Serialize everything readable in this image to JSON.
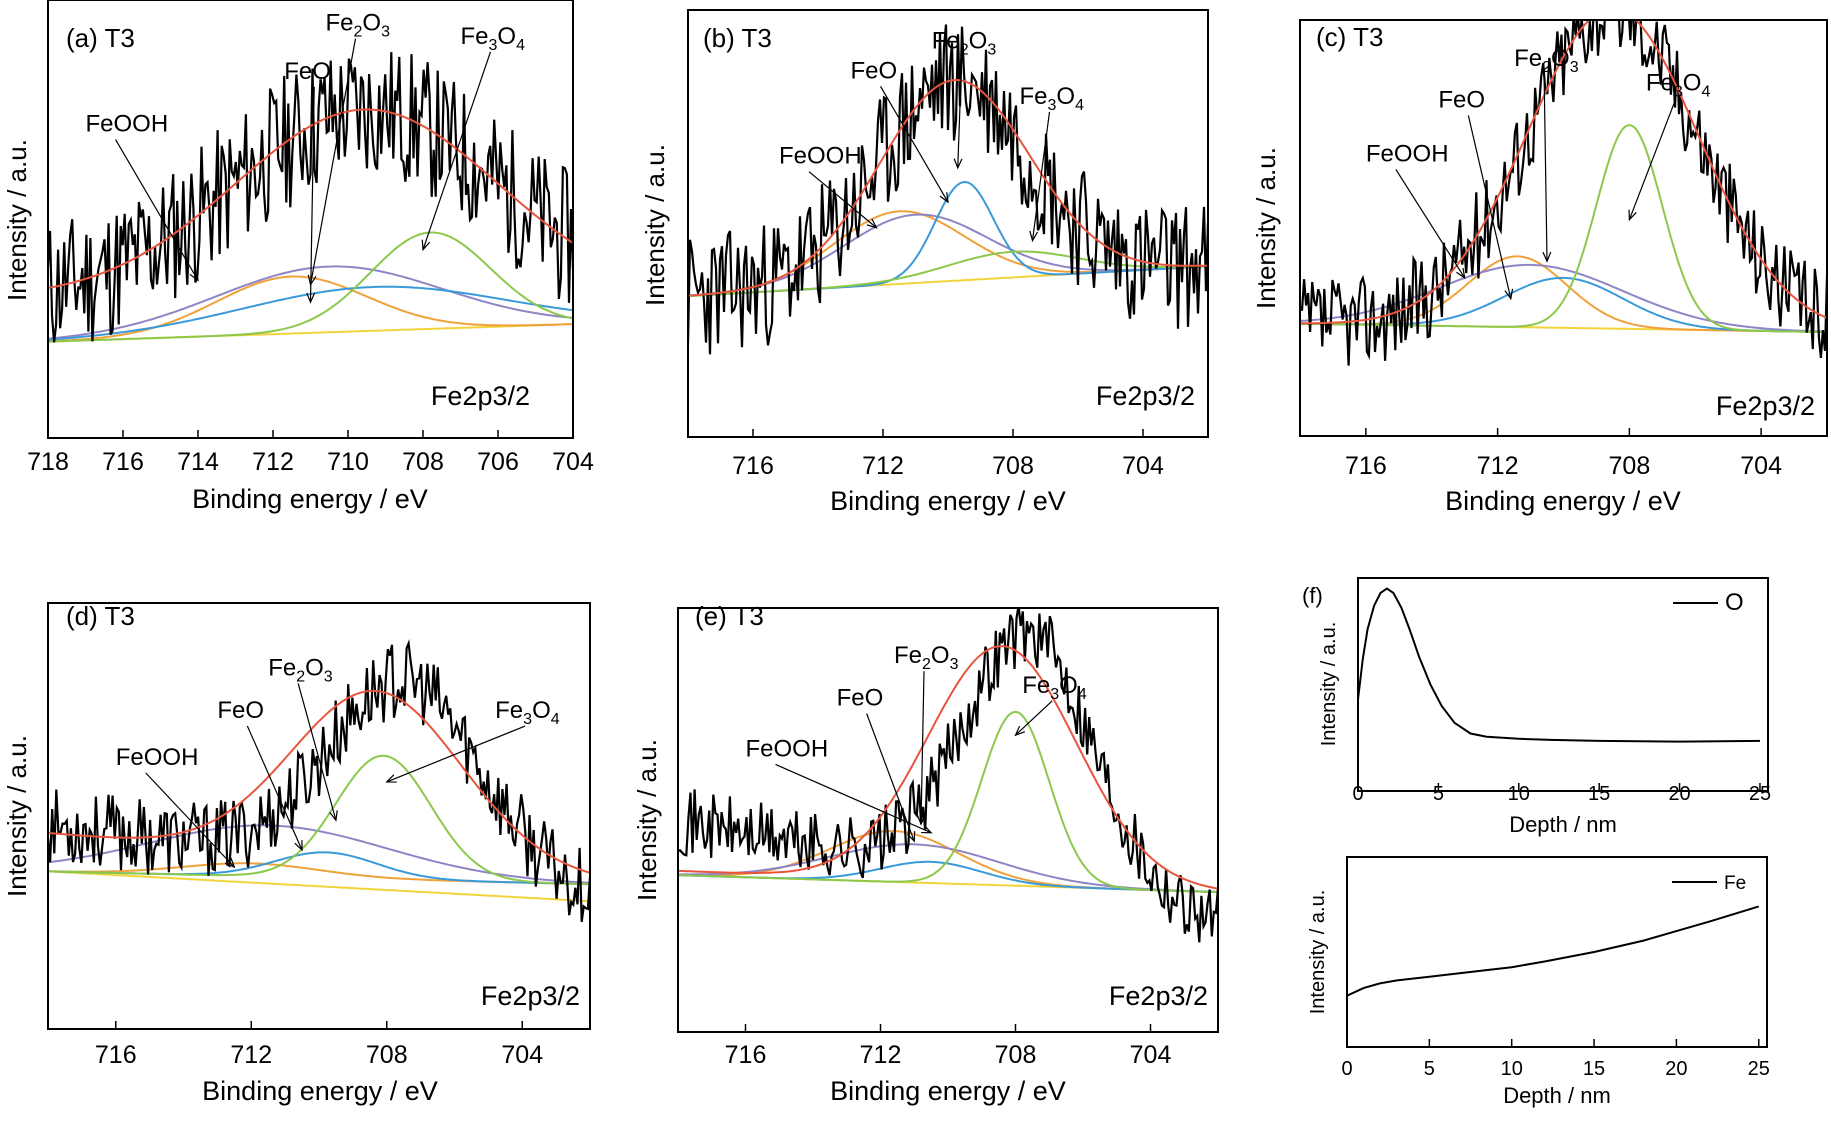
{
  "colors": {
    "raw": "#000000",
    "envelope": "#e8553d",
    "FeOOH": "#f0a13a",
    "FeO": "#3a9ad9",
    "Fe2O3": "#8f85c6",
    "Fe3O4": "#8cc84b",
    "background": "#f2d33a"
  },
  "chart_data": [
    {
      "type": "line",
      "panel": "(a)",
      "sample": "T3",
      "xlabel": "Binding energy / eV",
      "ylabel": "Intensity / a.u.",
      "region_label": "Fe2p3/2",
      "xlim": [
        718,
        704
      ],
      "ylim": [
        0,
        1
      ],
      "xticks": [
        718,
        716,
        714,
        712,
        710,
        708,
        706,
        704
      ],
      "x_reversed": true,
      "grid": false,
      "series": [
        {
          "name": "FeOOH",
          "kind": "peak",
          "center": 711.5,
          "amp": 0.13,
          "width": 2.0,
          "base": [
            0.22,
            0.26
          ]
        },
        {
          "name": "FeO",
          "kind": "peak",
          "center": 709.3,
          "amp": 0.1,
          "width": 3.5,
          "base": [
            0.22,
            0.26
          ]
        },
        {
          "name": "Fe2O3",
          "kind": "peak",
          "center": 710.5,
          "amp": 0.15,
          "width": 3.0,
          "base": [
            0.22,
            0.26
          ]
        },
        {
          "name": "Fe3O4",
          "kind": "peak",
          "center": 707.8,
          "amp": 0.22,
          "width": 1.6,
          "base": [
            0.22,
            0.26
          ]
        },
        {
          "name": "background",
          "kind": "line",
          "base": [
            0.22,
            0.26
          ]
        },
        {
          "name": "envelope",
          "kind": "peak",
          "center": 709.5,
          "amp": 0.43,
          "width": 3.5,
          "base": [
            0.32,
            0.32
          ]
        },
        {
          "name": "raw",
          "kind": "raw",
          "center": 709.5,
          "amp": 0.43,
          "width": 3.5,
          "base": [
            0.32,
            0.32
          ],
          "noise": 0.16,
          "seed": 11
        }
      ],
      "annotations": [
        {
          "text": "FeOOH",
          "tx": 717,
          "ty": 0.7,
          "ax": 714.0,
          "ay": 0.36
        },
        {
          "text": "FeO",
          "tx": 711.7,
          "ty": 0.82,
          "ax": 711.0,
          "ay": 0.31
        },
        {
          "text": "Fe",
          "sub": "2",
          "mid": "O",
          "sub2": "3",
          "tx": 710.6,
          "ty": 0.93,
          "ax": 711.0,
          "ay": 0.35
        },
        {
          "text": "Fe",
          "sub": "3",
          "mid": "O",
          "sub2": "4",
          "tx": 707.0,
          "ty": 0.9,
          "ax": 708.0,
          "ay": 0.43
        }
      ]
    },
    {
      "type": "line",
      "panel": "(b)",
      "sample": "T3",
      "xlabel": "Binding energy / eV",
      "ylabel": "Intensity / a.u.",
      "region_label": "Fe2p3/2",
      "xlim": [
        718,
        702
      ],
      "ylim": [
        0,
        1
      ],
      "xticks": [
        716,
        712,
        708,
        704
      ],
      "x_reversed": true,
      "grid": false,
      "series": [
        {
          "name": "FeOOH",
          "kind": "peak",
          "center": 711.5,
          "amp": 0.17,
          "width": 2.0,
          "base": [
            0.33,
            0.4
          ]
        },
        {
          "name": "FeO",
          "kind": "peak",
          "center": 709.5,
          "amp": 0.23,
          "width": 0.9,
          "base": [
            0.33,
            0.4
          ]
        },
        {
          "name": "Fe2O3",
          "kind": "peak",
          "center": 711.0,
          "amp": 0.16,
          "width": 2.2,
          "base": [
            0.33,
            0.4
          ]
        },
        {
          "name": "Fe3O4",
          "kind": "peak",
          "center": 708.0,
          "amp": 0.06,
          "width": 2.0,
          "base": [
            0.33,
            0.4
          ]
        },
        {
          "name": "background",
          "kind": "line",
          "base": [
            0.33,
            0.4
          ]
        },
        {
          "name": "envelope",
          "kind": "peak",
          "center": 709.8,
          "amp": 0.47,
          "width": 2.3,
          "base": [
            0.33,
            0.4
          ]
        },
        {
          "name": "raw",
          "kind": "raw",
          "center": 709.8,
          "amp": 0.47,
          "width": 2.3,
          "base": [
            0.33,
            0.4
          ],
          "noise": 0.15,
          "seed": 23
        }
      ],
      "annotations": [
        {
          "text": "FeOOH",
          "tx": 715.2,
          "ty": 0.64,
          "ax": 712.2,
          "ay": 0.49
        },
        {
          "text": "FeO",
          "tx": 713.0,
          "ty": 0.84,
          "ax": 710.0,
          "ay": 0.55
        },
        {
          "text": "Fe",
          "sub": "2",
          "mid": "O",
          "sub2": "3",
          "tx": 710.5,
          "ty": 0.91,
          "ax": 709.7,
          "ay": 0.63
        },
        {
          "text": "Fe",
          "sub": "3",
          "mid": "O",
          "sub2": "4",
          "tx": 707.8,
          "ty": 0.78,
          "ax": 707.4,
          "ay": 0.46
        }
      ]
    },
    {
      "type": "line",
      "panel": "(c)",
      "sample": "T3",
      "xlabel": "Binding energy / eV",
      "ylabel": "Intensity / a.u.",
      "region_label": "Fe2p3/2",
      "xlim": [
        718,
        702
      ],
      "ylim": [
        0,
        1
      ],
      "xticks": [
        716,
        712,
        708,
        704
      ],
      "x_reversed": true,
      "grid": false,
      "series": [
        {
          "name": "FeOOH",
          "kind": "peak",
          "center": 711.4,
          "amp": 0.17,
          "width": 1.5,
          "base": [
            0.27,
            0.25
          ]
        },
        {
          "name": "FeO",
          "kind": "peak",
          "center": 710.0,
          "amp": 0.12,
          "width": 1.8,
          "base": [
            0.27,
            0.25
          ]
        },
        {
          "name": "Fe2O3",
          "kind": "peak",
          "center": 711.0,
          "amp": 0.15,
          "width": 2.8,
          "base": [
            0.27,
            0.25
          ]
        },
        {
          "name": "Fe3O4",
          "kind": "peak",
          "center": 708.0,
          "amp": 0.49,
          "width": 1.0,
          "base": [
            0.27,
            0.25
          ]
        },
        {
          "name": "background",
          "kind": "line",
          "base": [
            0.27,
            0.25
          ]
        },
        {
          "name": "envelope",
          "kind": "peak",
          "center": 708.5,
          "amp": 0.77,
          "width": 2.6,
          "base": [
            0.27,
            0.25
          ]
        },
        {
          "name": "raw",
          "kind": "raw",
          "center": 708.5,
          "amp": 0.77,
          "width": 2.6,
          "base": [
            0.27,
            0.25
          ],
          "noise": 0.11,
          "seed": 37
        }
      ],
      "annotations": [
        {
          "text": "FeOOH",
          "tx": 716.0,
          "ty": 0.66,
          "ax": 713.0,
          "ay": 0.38
        },
        {
          "text": "FeO",
          "tx": 713.8,
          "ty": 0.79,
          "ax": 711.6,
          "ay": 0.33
        },
        {
          "text": "Fe",
          "sub": "2",
          "mid": "O",
          "sub2": "3",
          "tx": 711.5,
          "ty": 0.89,
          "ax": 710.5,
          "ay": 0.42
        },
        {
          "text": "Fe",
          "sub": "3",
          "mid": "O",
          "sub2": "4",
          "tx": 707.5,
          "ty": 0.83,
          "ax": 708.0,
          "ay": 0.52
        }
      ]
    },
    {
      "type": "line",
      "panel": "(d)",
      "sample": "T3",
      "xlabel": "Binding energy / eV",
      "ylabel": "Intensity / a.u.",
      "region_label": "Fe2p3/2",
      "xlim": [
        718,
        702
      ],
      "ylim": [
        0,
        1
      ],
      "xticks": [
        716,
        712,
        708,
        704
      ],
      "x_reversed": true,
      "grid": false,
      "series": [
        {
          "name": "FeOOH",
          "kind": "peak",
          "center": 712.0,
          "amp": 0.03,
          "width": 2.0,
          "base": [
            0.37,
            0.34
          ]
        },
        {
          "name": "FeO",
          "kind": "peak",
          "center": 709.8,
          "amp": 0.06,
          "width": 1.5,
          "base": [
            0.37,
            0.34
          ]
        },
        {
          "name": "Fe2O3",
          "kind": "peak",
          "center": 711.5,
          "amp": 0.12,
          "width": 3.5,
          "base": [
            0.37,
            0.34
          ]
        },
        {
          "name": "Fe3O4",
          "kind": "peak",
          "center": 708.1,
          "amp": 0.29,
          "width": 1.4,
          "base": [
            0.37,
            0.34
          ]
        },
        {
          "name": "background",
          "kind": "line",
          "base": [
            0.37,
            0.3
          ]
        },
        {
          "name": "envelope",
          "kind": "peak",
          "center": 708.3,
          "amp": 0.4,
          "width": 2.5,
          "base": [
            0.46,
            0.35
          ]
        },
        {
          "name": "raw",
          "kind": "raw",
          "center": 707.5,
          "amp": 0.45,
          "width": 2.2,
          "base": [
            0.48,
            0.31
          ],
          "noise": 0.09,
          "seed": 53
        }
      ],
      "annotations": [
        {
          "text": "FeOOH",
          "tx": 716.0,
          "ty": 0.62,
          "ax": 712.5,
          "ay": 0.38
        },
        {
          "text": "FeO",
          "tx": 713.0,
          "ty": 0.73,
          "ax": 710.5,
          "ay": 0.42
        },
        {
          "text": "Fe",
          "sub": "2",
          "mid": "O",
          "sub2": "3",
          "tx": 711.5,
          "ty": 0.83,
          "ax": 709.5,
          "ay": 0.49
        },
        {
          "text": "Fe",
          "sub": "3",
          "mid": "O",
          "sub2": "4",
          "tx": 704.8,
          "ty": 0.73,
          "ax": 708.0,
          "ay": 0.58
        }
      ]
    },
    {
      "type": "line",
      "panel": "(e)",
      "sample": "T3",
      "xlabel": "Binding energy / eV",
      "ylabel": "Intensity / a.u.",
      "region_label": "Fe2p3/2",
      "xlim": [
        718,
        702
      ],
      "ylim": [
        0,
        1
      ],
      "xticks": [
        716,
        712,
        708,
        704
      ],
      "x_reversed": true,
      "grid": false,
      "series": [
        {
          "name": "FeOOH",
          "kind": "peak",
          "center": 711.6,
          "amp": 0.12,
          "width": 1.9,
          "base": [
            0.37,
            0.33
          ]
        },
        {
          "name": "FeO",
          "kind": "peak",
          "center": 710.5,
          "amp": 0.05,
          "width": 1.5,
          "base": [
            0.37,
            0.33
          ]
        },
        {
          "name": "Fe2O3",
          "kind": "peak",
          "center": 711.0,
          "amp": 0.09,
          "width": 2.5,
          "base": [
            0.37,
            0.33
          ]
        },
        {
          "name": "Fe3O4",
          "kind": "peak",
          "center": 708.0,
          "amp": 0.41,
          "width": 1.0,
          "base": [
            0.37,
            0.33
          ]
        },
        {
          "name": "background",
          "kind": "line",
          "base": [
            0.37,
            0.33
          ]
        },
        {
          "name": "envelope",
          "kind": "peak",
          "center": 708.4,
          "amp": 0.56,
          "width": 2.2,
          "base": [
            0.38,
            0.33
          ]
        },
        {
          "name": "raw",
          "kind": "raw",
          "center": 707.6,
          "amp": 0.6,
          "width": 1.9,
          "base": [
            0.5,
            0.26
          ],
          "noise": 0.08,
          "seed": 71
        }
      ],
      "annotations": [
        {
          "text": "FeOOH",
          "tx": 716.0,
          "ty": 0.65,
          "ax": 710.5,
          "ay": 0.47
        },
        {
          "text": "FeO",
          "tx": 713.3,
          "ty": 0.77,
          "ax": 711.0,
          "ay": 0.45
        },
        {
          "text": "Fe",
          "sub": "2",
          "mid": "O",
          "sub2": "3",
          "tx": 711.6,
          "ty": 0.87,
          "ax": 710.8,
          "ay": 0.49
        },
        {
          "text": "Fe",
          "sub": "3",
          "mid": "O",
          "sub2": "4",
          "tx": 707.8,
          "ty": 0.8,
          "ax": 708.0,
          "ay": 0.7
        }
      ]
    },
    {
      "type": "line",
      "panel": "(f)",
      "xlabel": "Depth / nm",
      "ylabel": "Intensity / a.u.",
      "xlim": [
        0,
        25.5
      ],
      "ylim": [
        0,
        1
      ],
      "xticks": [
        0,
        5,
        10,
        15,
        20,
        25
      ],
      "grid": false,
      "legend_position": "top-right",
      "series": [
        {
          "name": "O",
          "x": [
            0,
            0.3,
            0.6,
            1.0,
            1.4,
            1.8,
            2.2,
            2.7,
            3.2,
            3.8,
            4.5,
            5.2,
            6.0,
            7.0,
            8.0,
            9.0,
            10.0,
            12.0,
            15.0,
            20.0,
            25.0
          ],
          "y": [
            0.43,
            0.62,
            0.76,
            0.87,
            0.93,
            0.95,
            0.93,
            0.86,
            0.76,
            0.63,
            0.5,
            0.4,
            0.32,
            0.27,
            0.255,
            0.25,
            0.245,
            0.24,
            0.235,
            0.232,
            0.235
          ]
        }
      ]
    },
    {
      "type": "line",
      "panel": "(f)",
      "xlabel": "Depth / nm",
      "ylabel": "Intensity / a.u.",
      "xlim": [
        0,
        25.5
      ],
      "ylim": [
        0,
        1
      ],
      "xticks": [
        0,
        5,
        10,
        15,
        20,
        25
      ],
      "grid": false,
      "legend_position": "top-right",
      "series": [
        {
          "name": "Fe",
          "x": [
            0,
            1,
            2,
            3,
            5,
            8,
            10,
            12,
            15,
            18,
            20,
            22,
            25
          ],
          "y": [
            0.27,
            0.31,
            0.335,
            0.35,
            0.37,
            0.4,
            0.42,
            0.45,
            0.5,
            0.56,
            0.61,
            0.66,
            0.74
          ]
        }
      ]
    }
  ]
}
